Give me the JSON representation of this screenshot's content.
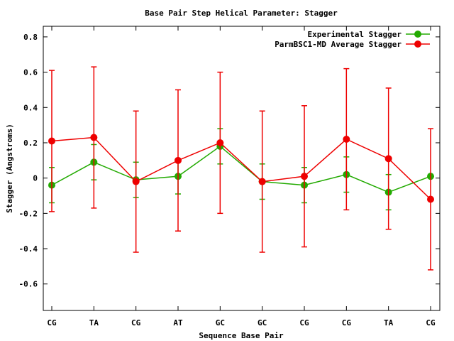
{
  "chart_data": {
    "type": "line",
    "title": "Base Pair Step Helical Parameter: Stagger",
    "xlabel": "Sequence Base Pair",
    "ylabel": "Stagger (Angstroms)",
    "categories": [
      "CG",
      "TA",
      "CG",
      "AT",
      "GC",
      "GC",
      "CG",
      "CG",
      "TA",
      "CG"
    ],
    "ylim": [
      -0.75,
      0.86
    ],
    "yticks": [
      -0.6,
      -0.4,
      -0.2,
      0,
      0.2,
      0.4,
      0.6,
      0.8
    ],
    "ytick_labels": [
      "-0.6",
      "-0.4",
      "-0.2",
      "0",
      "0.2",
      "0.4",
      "0.6",
      "0.8"
    ],
    "grid": false,
    "legend_position": "top-right",
    "series": [
      {
        "name": "Experimental Stagger",
        "color": "#22aa00",
        "values": [
          -0.04,
          0.09,
          -0.01,
          0.01,
          0.18,
          -0.02,
          -0.04,
          0.02,
          -0.08,
          0.01
        ],
        "errors": [
          0.1,
          0.1,
          0.1,
          0.1,
          0.1,
          0.1,
          0.1,
          0.1,
          0.1,
          0.0
        ]
      },
      {
        "name": "ParmBSC1-MD Average Stagger",
        "color": "#ee0000",
        "values": [
          0.21,
          0.23,
          -0.02,
          0.1,
          0.2,
          -0.02,
          0.01,
          0.22,
          0.11,
          -0.12
        ],
        "errors": [
          0.4,
          0.4,
          0.4,
          0.4,
          0.4,
          0.4,
          0.4,
          0.4,
          0.4,
          0.4
        ]
      }
    ]
  }
}
